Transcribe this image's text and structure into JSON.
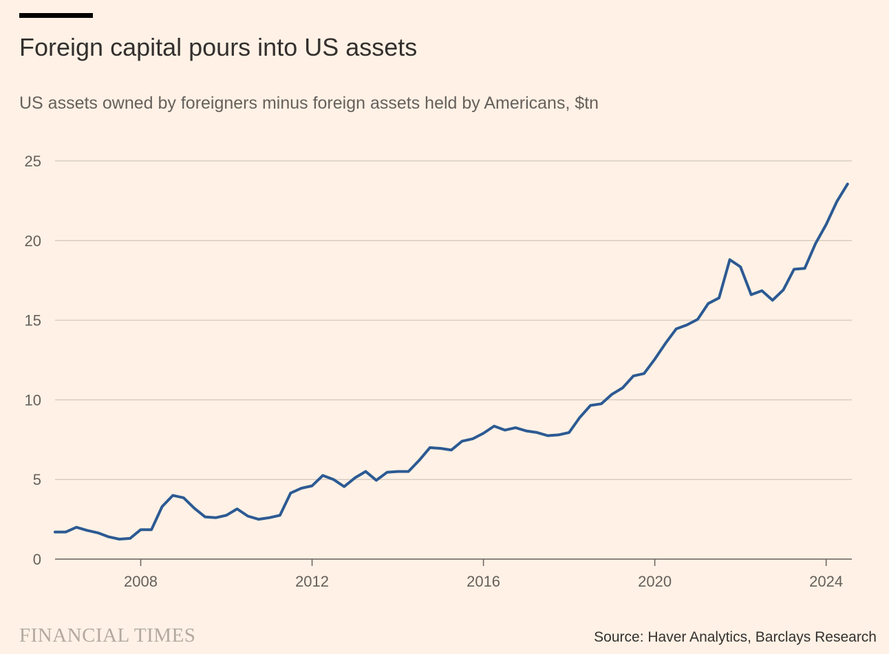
{
  "header": {
    "title": "Foreign capital pours into US assets",
    "subtitle": "US assets owned by foreigners minus foreign assets held by Americans, $tn"
  },
  "footer": {
    "brand": "FINANCIAL TIMES",
    "source": "Source: Haver Analytics, Barclays Research"
  },
  "colors": {
    "background": "#fff1e5",
    "line": "#2c5a93",
    "grid": "#d8cdc2",
    "axis": "#66605c",
    "brand_bar": "#000000"
  },
  "chart_data": {
    "type": "line",
    "title": "Foreign capital pours into US assets",
    "subtitle": "US assets owned by foreigners minus foreign assets held by Americans, $tn",
    "xlabel": "",
    "ylabel": "",
    "xlim": [
      2006.0,
      2024.6
    ],
    "ylim": [
      0,
      25
    ],
    "x_ticks": [
      2008,
      2012,
      2016,
      2020,
      2024
    ],
    "x_tick_labels": [
      "2008",
      "2012",
      "2016",
      "2020",
      "2024"
    ],
    "y_ticks": [
      0,
      5,
      10,
      15,
      20,
      25
    ],
    "y_tick_labels": [
      "0",
      "5",
      "10",
      "15",
      "20",
      "25"
    ],
    "grid": true,
    "legend": "none",
    "series": [
      {
        "x": [
          2006.0,
          2006.25,
          2006.5,
          2006.75,
          2007.0,
          2007.25,
          2007.5,
          2007.75,
          2008.0,
          2008.25,
          2008.5,
          2008.75,
          2009.0,
          2009.25,
          2009.5,
          2009.75,
          2010.0,
          2010.25,
          2010.5,
          2010.75,
          2011.0,
          2011.25,
          2011.5,
          2011.75,
          2012.0,
          2012.25,
          2012.5,
          2012.75,
          2013.0,
          2013.25,
          2013.5,
          2013.75,
          2014.0,
          2014.25,
          2014.5,
          2014.75,
          2015.0,
          2015.25,
          2015.5,
          2015.75,
          2016.0,
          2016.25,
          2016.5,
          2016.75,
          2017.0,
          2017.25,
          2017.5,
          2017.75,
          2018.0,
          2018.25,
          2018.5,
          2018.75,
          2019.0,
          2019.25,
          2019.5,
          2019.75,
          2020.0,
          2020.25,
          2020.5,
          2020.75,
          2021.0,
          2021.25,
          2021.5,
          2021.75,
          2022.0,
          2022.25,
          2022.5,
          2022.75,
          2023.0,
          2023.25,
          2023.5,
          2023.75,
          2024.0,
          2024.25,
          2024.5
        ],
        "values": [
          1.7,
          1.7,
          2.0,
          1.8,
          1.65,
          1.4,
          1.25,
          1.3,
          1.85,
          1.85,
          3.3,
          4.0,
          3.85,
          3.2,
          2.65,
          2.6,
          2.75,
          3.15,
          2.7,
          2.5,
          2.6,
          2.75,
          4.15,
          4.45,
          4.6,
          5.25,
          5.0,
          4.55,
          5.1,
          5.5,
          4.95,
          5.45,
          5.5,
          5.5,
          6.2,
          7.0,
          6.95,
          6.85,
          7.4,
          7.55,
          7.9,
          8.35,
          8.1,
          8.25,
          8.05,
          7.95,
          7.75,
          7.8,
          7.95,
          8.9,
          9.65,
          9.75,
          10.35,
          10.75,
          11.5,
          11.65,
          12.55,
          13.55,
          14.45,
          14.7,
          15.05,
          16.05,
          16.4,
          18.8,
          18.35,
          16.6,
          16.85,
          16.25,
          16.9,
          18.2,
          18.25,
          19.8,
          21.0,
          22.45,
          23.55
        ]
      }
    ]
  }
}
